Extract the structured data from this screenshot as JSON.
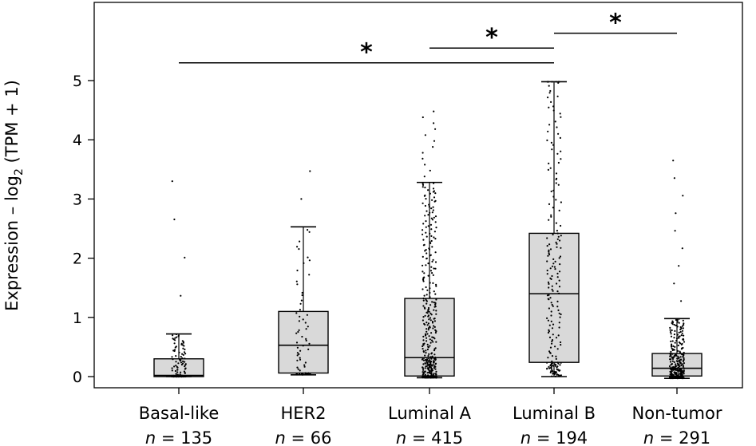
{
  "chart_data": {
    "type": "box",
    "title": "",
    "xlabel": "",
    "ylabel": {
      "main": "Expression – log",
      "subscript": "2",
      "suffix": " (TPM + 1)"
    },
    "ylim": [
      -0.2,
      6.35
    ],
    "yticks": [
      0,
      1,
      2,
      3,
      4,
      5
    ],
    "grid": false,
    "legend": "none",
    "box_fill": "#d9d9d9",
    "point_color": "#000000",
    "groups": [
      {
        "name": "Basal-like",
        "n_text": "= 135",
        "n": 135,
        "q1": 0.0,
        "median": 0.02,
        "q3": 0.3,
        "whisker_low": 0.0,
        "whisker_high": 0.72,
        "max_point": 3.3
      },
      {
        "name": "HER2",
        "n_text": "= 66",
        "n": 66,
        "q1": 0.06,
        "median": 0.53,
        "q3": 1.1,
        "whisker_low": 0.03,
        "whisker_high": 2.53,
        "max_point": 3.47
      },
      {
        "name": "Luminal A",
        "n_text": "= 415",
        "n": 415,
        "q1": 0.01,
        "median": 0.32,
        "q3": 1.32,
        "whisker_low": -0.02,
        "whisker_high": 3.28,
        "max_point": 4.48
      },
      {
        "name": "Luminal B",
        "n_text": "= 194",
        "n": 194,
        "q1": 0.24,
        "median": 1.4,
        "q3": 2.42,
        "whisker_low": 0.0,
        "whisker_high": 4.98,
        "max_point": 4.98
      },
      {
        "name": "Non-tumor",
        "n_text": "= 291",
        "n": 291,
        "q1": 0.01,
        "median": 0.14,
        "q3": 0.39,
        "whisker_low": -0.03,
        "whisker_high": 0.98,
        "max_point": 3.65
      }
    ],
    "significance": [
      {
        "from": 0,
        "to": 3,
        "y": 5.3,
        "label": "*"
      },
      {
        "from": 2,
        "to": 3,
        "y": 5.55,
        "label": "*"
      },
      {
        "from": 3,
        "to": 4,
        "y": 5.8,
        "label": "*"
      }
    ]
  }
}
